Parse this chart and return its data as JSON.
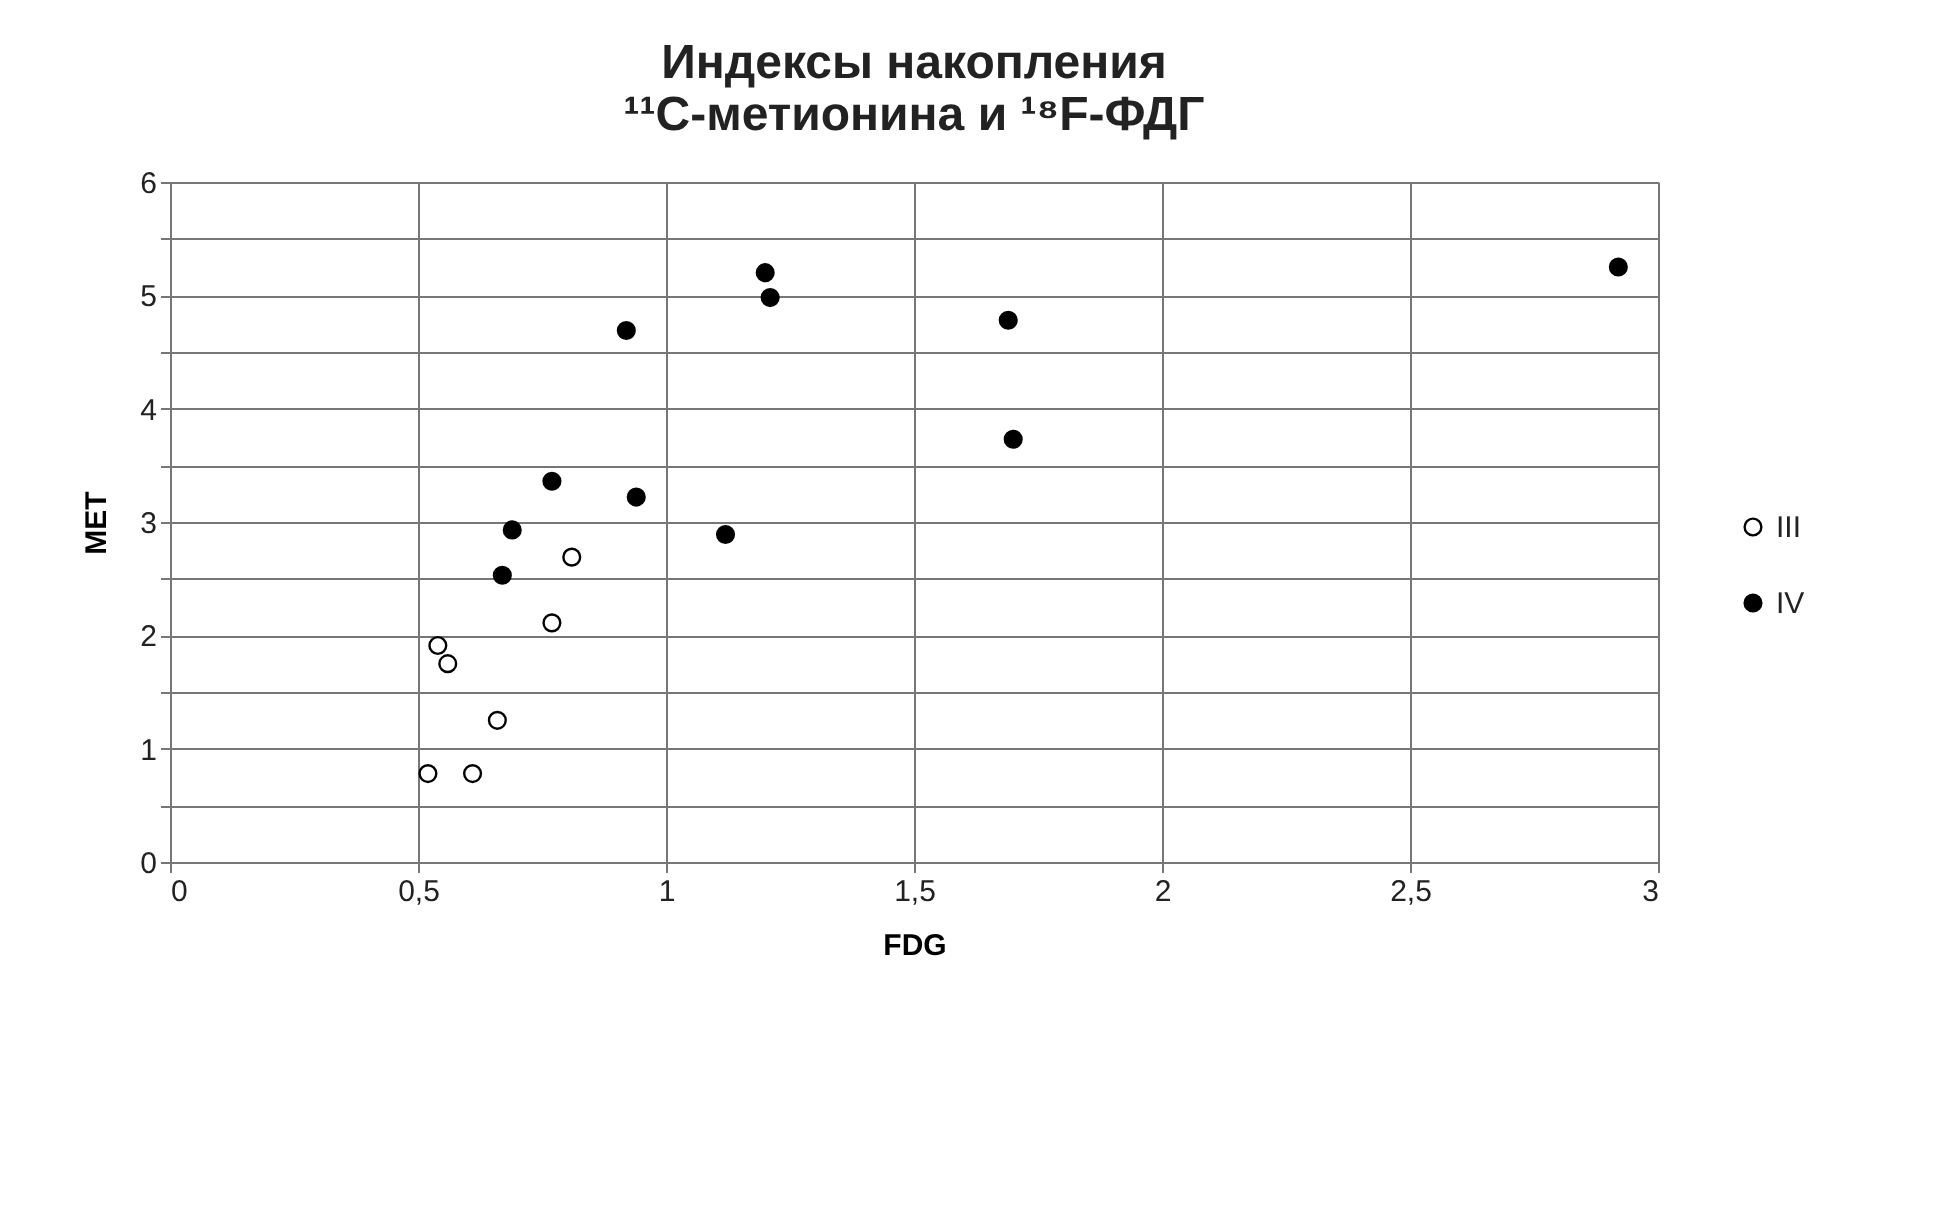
{
  "chart_data": {
    "type": "scatter",
    "title": [
      "Индексы накопления",
      "¹¹С-метионина  и  ¹⁸F-ФДГ"
    ],
    "xlabel": "FDG",
    "ylabel": "MET",
    "series": [
      {
        "name": "III",
        "color": "#ffffff",
        "x": [
          0.52,
          0.61,
          0.66,
          0.54,
          0.56,
          0.77,
          0.81
        ],
        "values": [
          0.78,
          0.78,
          1.25,
          1.91,
          1.75,
          2.11,
          2.69
        ]
      },
      {
        "name": "IV",
        "color": "#000000",
        "x": [
          0.67,
          0.69,
          0.77,
          0.94,
          0.92,
          1.2,
          1.21,
          1.12,
          1.69,
          1.7,
          2.92
        ],
        "values": [
          2.53,
          2.93,
          3.36,
          3.22,
          4.69,
          5.2,
          4.98,
          2.89,
          4.78,
          3.73,
          5.25
        ]
      }
    ],
    "xlim": [
      0,
      3
    ],
    "ylim": [
      0,
      6
    ],
    "xticks": [
      0,
      {
        "value": 0.5,
        "label": "0,5"
      },
      1,
      {
        "value": 1.5,
        "label": "1,5"
      },
      2,
      {
        "value": 2.5,
        "label": "2,5"
      },
      3
    ],
    "yticks": [
      0,
      {
        "value": 0.5,
        "label": null
      },
      1,
      {
        "value": 1.5,
        "label": null
      },
      2,
      {
        "value": 2.5,
        "label": null
      },
      3,
      {
        "value": 3.5,
        "label": null
      },
      4,
      {
        "value": 4.5,
        "label": null
      },
      5,
      {
        "value": 5.5,
        "label": null
      },
      6
    ],
    "grid": true,
    "legend": "right",
    "marker": "circle"
  }
}
